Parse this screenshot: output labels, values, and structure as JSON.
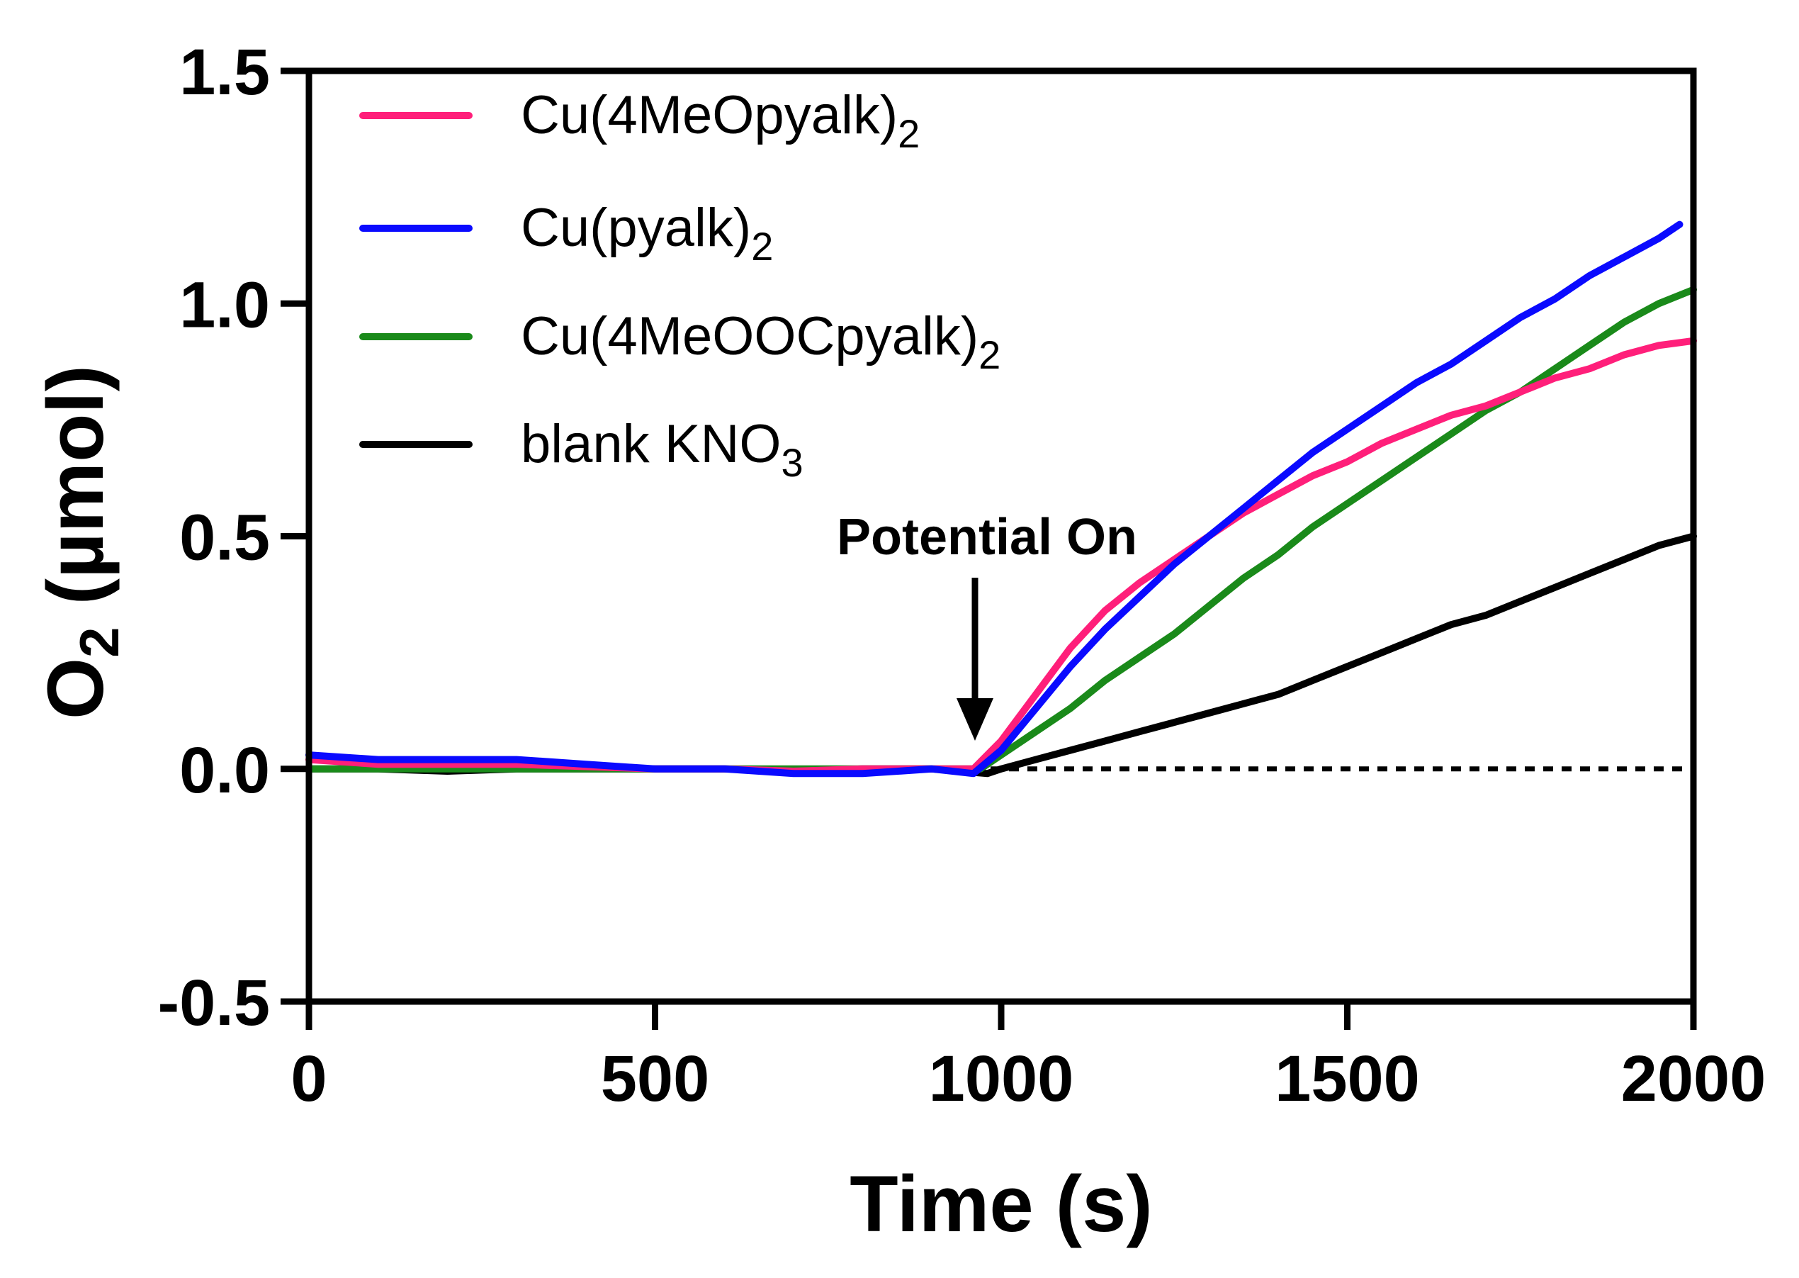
{
  "chart_data": {
    "type": "line",
    "xlabel": "Time (s)",
    "ylabel": "O",
    "ylabel_sub": "2",
    "ylabel_unit": " (µmol)",
    "xlim": [
      0,
      2000
    ],
    "ylim": [
      -0.5,
      1.5
    ],
    "x_ticks": [
      "0",
      "500",
      "1000",
      "1500",
      "2000"
    ],
    "y_ticks": [
      "-0.5",
      "0.0",
      "0.5",
      "1.0",
      "1.5"
    ],
    "grid": false,
    "legend_position": "top-left",
    "reference_line": {
      "y": 0.0,
      "style": "dotted"
    },
    "annotation": {
      "text": "Potential On",
      "x": 965,
      "arrow_to_y": 0.03
    },
    "series": [
      {
        "name": "Cu(4MeOpyalk)",
        "name_sub": "2",
        "color": "#ff1f7a",
        "x": [
          0,
          100,
          200,
          300,
          400,
          500,
          600,
          700,
          800,
          900,
          960,
          1000,
          1050,
          1100,
          1150,
          1200,
          1250,
          1300,
          1350,
          1400,
          1450,
          1500,
          1550,
          1600,
          1650,
          1700,
          1750,
          1800,
          1850,
          1900,
          1950,
          2000
        ],
        "y": [
          0.02,
          0.01,
          0.01,
          0.01,
          0.005,
          0.0,
          0.0,
          -0.005,
          0.0,
          0.0,
          0.0,
          0.06,
          0.16,
          0.26,
          0.34,
          0.4,
          0.45,
          0.5,
          0.55,
          0.59,
          0.63,
          0.66,
          0.7,
          0.73,
          0.76,
          0.78,
          0.81,
          0.84,
          0.86,
          0.89,
          0.91,
          0.92
        ]
      },
      {
        "name": "Cu(pyalk)",
        "name_sub": "2",
        "color": "#0a0aff",
        "x": [
          0,
          100,
          200,
          300,
          400,
          500,
          600,
          700,
          800,
          900,
          960,
          1000,
          1050,
          1100,
          1150,
          1200,
          1250,
          1300,
          1350,
          1400,
          1450,
          1500,
          1550,
          1600,
          1650,
          1700,
          1750,
          1800,
          1850,
          1900,
          1950,
          1980
        ],
        "y": [
          0.03,
          0.02,
          0.02,
          0.02,
          0.01,
          0.0,
          0.0,
          -0.01,
          -0.01,
          0.0,
          -0.01,
          0.04,
          0.13,
          0.22,
          0.3,
          0.37,
          0.44,
          0.5,
          0.56,
          0.62,
          0.68,
          0.73,
          0.78,
          0.83,
          0.87,
          0.92,
          0.97,
          1.01,
          1.06,
          1.1,
          1.14,
          1.17
        ]
      },
      {
        "name": "Cu(4MeOOCpyalk)",
        "name_sub": "2",
        "color": "#1a8a1a",
        "x": [
          0,
          100,
          200,
          300,
          400,
          500,
          600,
          700,
          800,
          900,
          970,
          1000,
          1050,
          1100,
          1150,
          1200,
          1250,
          1300,
          1350,
          1400,
          1450,
          1500,
          1550,
          1600,
          1650,
          1700,
          1750,
          1800,
          1850,
          1900,
          1950,
          2000
        ],
        "y": [
          0.0,
          0.0,
          0.0,
          0.0,
          0.0,
          0.0,
          0.0,
          0.0,
          0.0,
          0.0,
          0.0,
          0.03,
          0.08,
          0.13,
          0.19,
          0.24,
          0.29,
          0.35,
          0.41,
          0.46,
          0.52,
          0.57,
          0.62,
          0.67,
          0.72,
          0.77,
          0.81,
          0.86,
          0.91,
          0.96,
          1.0,
          1.03
        ]
      },
      {
        "name": "blank KNO",
        "name_sub": "3",
        "color": "#000000",
        "x": [
          0,
          100,
          200,
          300,
          400,
          500,
          600,
          700,
          800,
          900,
          980,
          1000,
          1050,
          1100,
          1150,
          1200,
          1250,
          1300,
          1350,
          1400,
          1450,
          1500,
          1550,
          1600,
          1650,
          1700,
          1750,
          1800,
          1850,
          1900,
          1950,
          2000
        ],
        "y": [
          0.0,
          0.0,
          -0.005,
          0.0,
          0.0,
          0.0,
          0.0,
          -0.005,
          0.0,
          0.0,
          -0.01,
          0.0,
          0.02,
          0.04,
          0.06,
          0.08,
          0.1,
          0.12,
          0.14,
          0.16,
          0.19,
          0.22,
          0.25,
          0.28,
          0.31,
          0.33,
          0.36,
          0.39,
          0.42,
          0.45,
          0.48,
          0.5
        ]
      }
    ]
  }
}
